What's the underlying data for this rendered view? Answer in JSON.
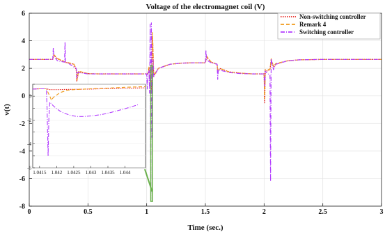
{
  "chart_data": {
    "type": "line",
    "title": "Voltage of the electromagnet coil (V)",
    "xlabel": "Time (sec.)",
    "ylabel": "v(t)",
    "xlim": [
      0,
      3
    ],
    "ylim": [
      -8,
      6
    ],
    "xticks": [
      0,
      0.5,
      1,
      1.5,
      2,
      2.5,
      3
    ],
    "xtick_labels": [
      "0",
      "0.5",
      "1",
      "1.5",
      "2",
      "2.5",
      "3"
    ],
    "yticks": [
      -8,
      -6,
      -4,
      -2,
      0,
      2,
      4,
      6
    ],
    "ytick_labels": [
      "-8",
      "-6",
      "-4",
      "-2",
      "0",
      "2",
      "4",
      "6"
    ],
    "grid": true,
    "legend_position": "top-right",
    "series": [
      {
        "name": "Non-switching controller",
        "color": "#e8221c",
        "x": [
          0,
          0.2,
          0.21,
          0.24,
          0.3,
          0.38,
          0.4,
          0.405,
          0.42,
          0.5,
          0.6,
          0.8,
          0.95,
          1.0,
          1.01,
          1.02,
          1.03,
          1.04,
          1.05,
          1.06,
          1.1,
          1.2,
          1.3,
          1.4,
          1.5,
          1.51,
          1.55,
          1.6,
          1.605,
          1.62,
          1.7,
          1.8,
          1.9,
          2.0,
          2.005,
          2.01,
          2.02,
          2.05,
          2.06,
          2.08,
          2.1,
          2.2,
          2.3,
          2.5,
          3.0
        ],
        "y": [
          2.65,
          2.65,
          2.95,
          2.7,
          2.45,
          2.3,
          1.9,
          1.05,
          1.75,
          1.62,
          1.6,
          1.6,
          1.6,
          1.6,
          1.62,
          2.0,
          1.0,
          0.5,
          4.3,
          1.4,
          2.0,
          2.3,
          2.38,
          2.4,
          2.4,
          2.8,
          2.45,
          2.3,
          1.7,
          2.0,
          1.75,
          1.65,
          1.6,
          1.6,
          -0.5,
          1.9,
          1.8,
          1.9,
          2.6,
          2.1,
          2.3,
          2.55,
          2.62,
          2.65,
          2.65
        ]
      },
      {
        "name": "Remark 4",
        "color": "#f09a1a",
        "x": [
          0,
          0.2,
          0.21,
          0.24,
          0.3,
          0.38,
          0.4,
          0.405,
          0.42,
          0.5,
          0.6,
          0.8,
          0.95,
          1.0,
          1.01,
          1.02,
          1.03,
          1.04,
          1.05,
          1.06,
          1.1,
          1.2,
          1.3,
          1.4,
          1.5,
          1.51,
          1.55,
          1.6,
          1.605,
          1.62,
          1.7,
          1.8,
          1.9,
          2.0,
          2.005,
          2.01,
          2.02,
          2.05,
          2.06,
          2.08,
          2.1,
          2.2,
          2.3,
          2.5,
          3.0
        ],
        "y": [
          2.65,
          2.65,
          3.0,
          2.72,
          2.5,
          2.3,
          2.0,
          1.15,
          1.8,
          1.62,
          1.6,
          1.6,
          1.6,
          1.6,
          1.62,
          2.1,
          1.2,
          0.8,
          4.6,
          1.5,
          2.0,
          2.3,
          2.38,
          2.4,
          2.4,
          2.9,
          2.45,
          2.3,
          1.75,
          2.0,
          1.75,
          1.65,
          1.6,
          1.6,
          -0.2,
          1.9,
          1.85,
          1.95,
          2.7,
          2.15,
          2.35,
          2.55,
          2.62,
          2.65,
          2.65
        ]
      },
      {
        "name": "Switching controller",
        "color": "#b23cff",
        "x": [
          0,
          0.2,
          0.205,
          0.21,
          0.24,
          0.3,
          0.305,
          0.31,
          0.38,
          0.4,
          0.405,
          0.41,
          0.5,
          0.6,
          0.8,
          0.95,
          1.0,
          1.005,
          1.01,
          1.02,
          1.025,
          1.03,
          1.035,
          1.04,
          1.045,
          1.05,
          1.055,
          1.06,
          1.1,
          1.2,
          1.3,
          1.4,
          1.5,
          1.505,
          1.51,
          1.55,
          1.6,
          1.605,
          1.61,
          1.7,
          1.8,
          1.9,
          2.0,
          2.005,
          2.01,
          2.02,
          2.05,
          2.055,
          2.06,
          2.08,
          2.1,
          2.2,
          2.3,
          2.5,
          3.0
        ],
        "y": [
          2.65,
          2.65,
          3.5,
          2.9,
          2.55,
          2.45,
          3.9,
          2.5,
          2.1,
          2.0,
          1.3,
          1.7,
          1.6,
          1.6,
          1.6,
          1.6,
          1.6,
          0.5,
          1.6,
          1.8,
          0.2,
          5.2,
          -7.5,
          5.3,
          -3.0,
          1.2,
          2.6,
          1.4,
          2.0,
          2.3,
          2.38,
          2.4,
          2.4,
          3.3,
          2.6,
          2.4,
          2.3,
          1.2,
          1.9,
          1.7,
          1.62,
          1.6,
          1.6,
          0.7,
          1.8,
          1.7,
          1.5,
          -6.2,
          2.7,
          1.9,
          2.3,
          2.55,
          2.62,
          2.65,
          2.65
        ]
      }
    ],
    "inset": {
      "xlim": [
        1.0413,
        1.0446
      ],
      "ylim": [
        -6,
        1
      ],
      "xticks": [
        1.0415,
        1.042,
        1.0425,
        1.043,
        1.0435,
        1.044
      ],
      "xtick_labels": [
        "1.0415",
        "1.042",
        "1.0425",
        "1.043",
        "1.0435",
        "1.044"
      ],
      "yticks": [
        -6,
        -5,
        -4,
        -3,
        -2,
        -1,
        0,
        1
      ],
      "ytick_labels": [
        "-6",
        "-5",
        "-4",
        "-3",
        "-2",
        "-1",
        "0",
        "1"
      ],
      "series": [
        {
          "name": "Non-switching controller",
          "x": [
            1.0413,
            1.0415,
            1.0417,
            1.0418,
            1.042,
            1.0425,
            1.043,
            1.0435,
            1.044,
            1.0446
          ],
          "y": [
            0.6,
            0.62,
            0.62,
            0.55,
            0.55,
            0.58,
            0.6,
            0.64,
            0.66,
            0.7
          ]
        },
        {
          "name": "Remark 4",
          "x": [
            1.0413,
            1.0415,
            1.0417,
            1.04175,
            1.0418,
            1.04185,
            1.0419,
            1.042,
            1.0421,
            1.0423,
            1.0425,
            1.043,
            1.0435,
            1.044,
            1.0446
          ],
          "y": [
            0.6,
            0.62,
            0.62,
            0.3,
            0.0,
            -0.35,
            -0.1,
            0.1,
            0.3,
            0.5,
            0.55,
            0.62,
            0.68,
            0.75,
            0.8
          ]
        },
        {
          "name": "Switching controller",
          "x": [
            1.0413,
            1.0415,
            1.0417,
            1.04172,
            1.04175,
            1.04177,
            1.0418,
            1.0419,
            1.042,
            1.0421,
            1.0422,
            1.0424,
            1.0426,
            1.0428,
            1.043,
            1.0433,
            1.0436,
            1.044,
            1.0444
          ],
          "y": [
            0.6,
            0.62,
            0.62,
            -1.0,
            -5.0,
            -2.0,
            -0.5,
            -0.8,
            -1.05,
            -1.25,
            -1.4,
            -1.6,
            -1.7,
            -1.7,
            -1.65,
            -1.55,
            -1.35,
            -1.05,
            -0.7
          ]
        }
      ]
    }
  }
}
